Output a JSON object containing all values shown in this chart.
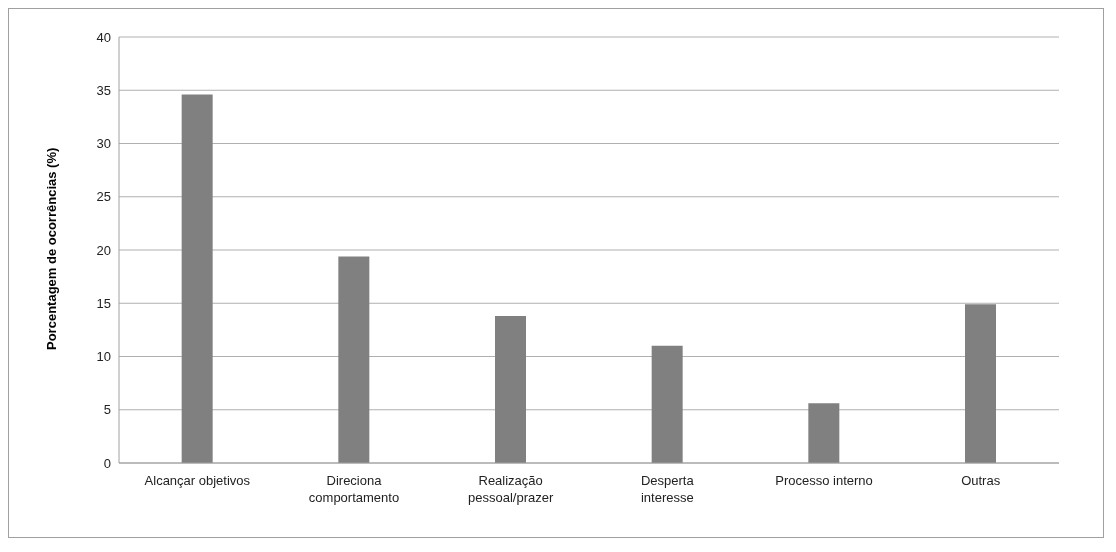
{
  "chart_data": {
    "type": "bar",
    "ylabel": "Porcentagem de ocorrências  (%)",
    "categories": [
      "Alcançar objetivos",
      "Direciona\ncomportamento",
      "Realização\npessoal/prazer",
      "Desperta\ninteresse",
      "Processo interno",
      "Outras"
    ],
    "values": [
      34.6,
      19.4,
      13.8,
      11.0,
      5.6,
      14.9
    ],
    "color": "#808080",
    "ylim": [
      0,
      40
    ],
    "yticks": [
      0,
      5,
      10,
      15,
      20,
      25,
      30,
      35,
      40
    ],
    "grid": "y",
    "legend": false
  }
}
